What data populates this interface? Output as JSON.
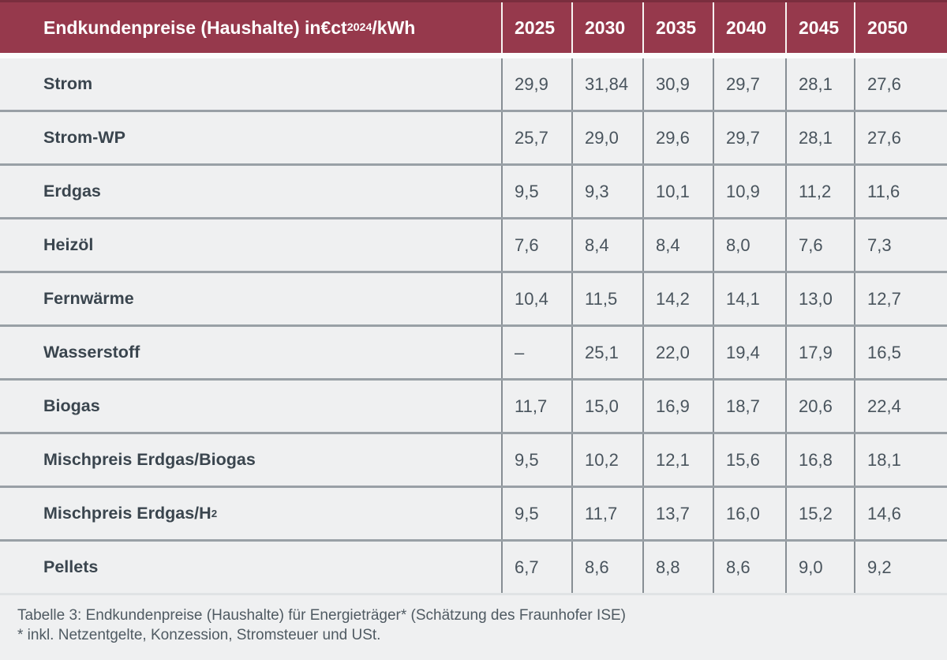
{
  "header": {
    "title_prefix": "Endkundenpreise (Haushalte) in€ct",
    "title_sub": "2024",
    "title_suffix": "/kWh"
  },
  "caption": {
    "line1": "Tabelle 3: Endkundenpreise (Haushalte) für Energieträger* (Schätzung des Fraunhofer ISE)",
    "line2": "* inkl. Netzentgelte, Konzession, Stromsteuer und USt."
  },
  "colors": {
    "header_bg": "#96394c",
    "header_border_top": "#7a2e3e",
    "body_bg": "#eff0f1",
    "row_divider": "#99a0a6",
    "col_divider": "#878e94",
    "header_text": "#ffffff",
    "label_text": "#3a454e",
    "value_text": "#49545d"
  },
  "chart_data": {
    "type": "table",
    "title": "Endkundenpreise (Haushalte) in €ct2024/kWh",
    "unit": "€ct2024/kWh",
    "columns": [
      "2025",
      "2030",
      "2035",
      "2040",
      "2045",
      "2050"
    ],
    "rows": [
      {
        "label": "Strom",
        "label_main": "Strom",
        "label_sub": "",
        "values": [
          "29,9",
          "31,84",
          "30,9",
          "29,7",
          "28,1",
          "27,6"
        ]
      },
      {
        "label": "Strom-WP",
        "label_main": "Strom-WP",
        "label_sub": "",
        "values": [
          "25,7",
          "29,0",
          "29,6",
          "29,7",
          "28,1",
          "27,6"
        ]
      },
      {
        "label": "Erdgas",
        "label_main": "Erdgas",
        "label_sub": "",
        "values": [
          "9,5",
          "9,3",
          "10,1",
          "10,9",
          "11,2",
          "11,6"
        ]
      },
      {
        "label": "Heizöl",
        "label_main": "Heizöl",
        "label_sub": "",
        "values": [
          "7,6",
          "8,4",
          "8,4",
          "8,0",
          "7,6",
          "7,3"
        ]
      },
      {
        "label": "Fernwärme",
        "label_main": "Fernwärme",
        "label_sub": "",
        "values": [
          "10,4",
          "11,5",
          "14,2",
          "14,1",
          "13,0",
          "12,7"
        ]
      },
      {
        "label": "Wasserstoff",
        "label_main": "Wasserstoff",
        "label_sub": "",
        "values": [
          "–",
          "25,1",
          "22,0",
          "19,4",
          "17,9",
          "16,5"
        ]
      },
      {
        "label": "Biogas",
        "label_main": "Biogas",
        "label_sub": "",
        "values": [
          "11,7",
          "15,0",
          "16,9",
          "18,7",
          "20,6",
          "22,4"
        ]
      },
      {
        "label": "Mischpreis Erdgas/Biogas",
        "label_main": "Mischpreis Erdgas/Biogas",
        "label_sub": "",
        "values": [
          "9,5",
          "10,2",
          "12,1",
          "15,6",
          "16,8",
          "18,1"
        ]
      },
      {
        "label": "Mischpreis Erdgas/H2",
        "label_main": "Mischpreis Erdgas/H",
        "label_sub": "2",
        "values": [
          "9,5",
          "11,7",
          "13,7",
          "16,0",
          "15,2",
          "14,6"
        ]
      },
      {
        "label": "Pellets",
        "label_main": "Pellets",
        "label_sub": "",
        "values": [
          "6,7",
          "8,6",
          "8,8",
          "8,6",
          "9,0",
          "9,2"
        ]
      }
    ]
  }
}
